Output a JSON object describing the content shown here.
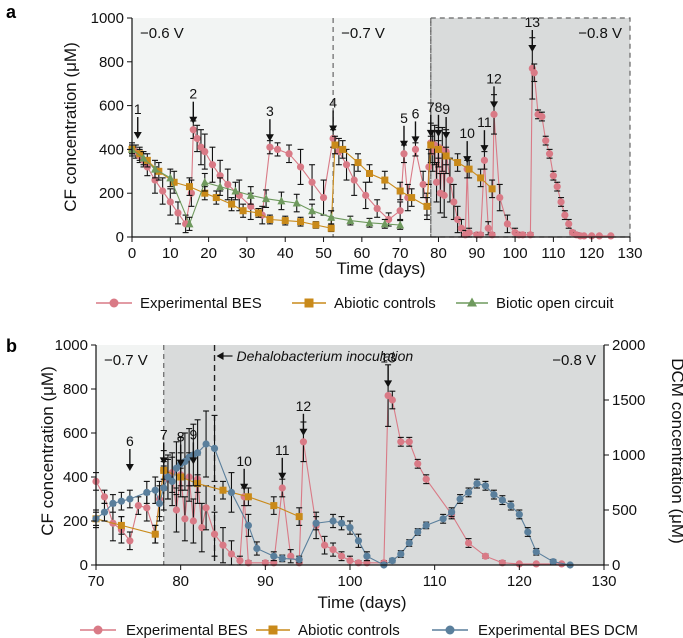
{
  "colors": {
    "experimental_bes": "#d97a86",
    "abiotic": "#c98a1a",
    "biotic": "#6f9a5e",
    "dcm": "#5a7f9c",
    "phase_light": "#f2f4f3",
    "phase_dark": "#d9dbdb"
  },
  "chart_data": [
    {
      "type": "line",
      "panel": "a",
      "xlabel": "Time (days)",
      "ylabel": "CF concentration (μM)",
      "xlim": [
        0,
        130
      ],
      "ylim": [
        0,
        1000
      ],
      "xticks": [
        0,
        10,
        20,
        30,
        40,
        50,
        60,
        70,
        80,
        90,
        100,
        110,
        120,
        130
      ],
      "yticks": [
        0,
        200,
        400,
        600,
        800,
        1000
      ],
      "phases": [
        {
          "label": "−0.6 V",
          "x0": 0,
          "x1": 52.5
        },
        {
          "label": "−0.7 V",
          "x0": 52.5,
          "x1": 78
        },
        {
          "label": "−0.8 V",
          "x0": 78,
          "x1": 130
        }
      ],
      "annotations": [
        {
          "label": "1",
          "x": 1.5,
          "y": 420
        },
        {
          "label": "2",
          "x": 16,
          "y": 490
        },
        {
          "label": "3",
          "x": 36,
          "y": 410
        },
        {
          "label": "4",
          "x": 52.5,
          "y": 450
        },
        {
          "label": "5",
          "x": 71,
          "y": 380
        },
        {
          "label": "6",
          "x": 74,
          "y": 400
        },
        {
          "label": "7",
          "x": 78,
          "y": 430
        },
        {
          "label": "8",
          "x": 80,
          "y": 430
        },
        {
          "label": "9",
          "x": 82,
          "y": 420
        },
        {
          "label": "10",
          "x": 87.5,
          "y": 310
        },
        {
          "label": "11",
          "x": 92,
          "y": 360
        },
        {
          "label": "12",
          "x": 94.5,
          "y": 560
        },
        {
          "label": "13",
          "x": 104.5,
          "y": 910
        }
      ],
      "series": [
        {
          "name": "Experimental BES",
          "marker": "circle",
          "x": [
            0,
            1,
            2,
            3,
            4,
            6,
            8,
            10,
            12,
            14,
            15.5,
            16,
            17,
            18,
            19,
            21,
            23,
            25,
            28,
            31,
            34,
            36,
            38,
            41,
            44,
            47,
            50,
            52.5,
            54,
            56,
            58,
            61,
            64,
            67,
            70,
            71,
            72,
            74,
            76,
            77,
            77.5,
            78,
            78.5,
            79,
            79.5,
            80,
            80.5,
            81,
            81.5,
            82,
            83,
            84,
            85,
            86,
            87,
            87.5,
            88,
            90,
            91,
            92,
            93,
            94,
            94.5,
            96,
            98,
            100,
            101,
            102,
            104,
            104.5,
            105,
            106,
            107,
            108,
            109,
            110,
            111,
            112,
            113,
            114,
            115,
            116,
            117,
            118,
            120,
            122,
            125
          ],
          "y": [
            400,
            390,
            370,
            350,
            320,
            260,
            210,
            160,
            110,
            60,
            200,
            490,
            450,
            410,
            390,
            330,
            280,
            240,
            190,
            140,
            100,
            410,
            400,
            380,
            320,
            250,
            180,
            450,
            390,
            330,
            260,
            190,
            130,
            80,
            120,
            380,
            180,
            400,
            240,
            140,
            320,
            430,
            390,
            420,
            250,
            410,
            200,
            400,
            190,
            390,
            260,
            160,
            80,
            40,
            10,
            310,
            20,
            10,
            10,
            350,
            40,
            10,
            560,
            180,
            60,
            20,
            10,
            10,
            10,
            770,
            750,
            560,
            550,
            440,
            380,
            280,
            230,
            160,
            100,
            60,
            20,
            10,
            5,
            5,
            5,
            5,
            5
          ],
          "err": [
            30,
            30,
            30,
            30,
            40,
            60,
            60,
            60,
            50,
            40,
            60,
            40,
            60,
            80,
            80,
            80,
            70,
            70,
            70,
            60,
            40,
            30,
            30,
            40,
            80,
            80,
            80,
            40,
            60,
            70,
            70,
            60,
            40,
            30,
            40,
            40,
            60,
            30,
            60,
            60,
            80,
            90,
            90,
            90,
            90,
            90,
            90,
            100,
            100,
            100,
            100,
            80,
            60,
            40,
            20,
            40,
            20,
            10,
            10,
            40,
            30,
            10,
            90,
            60,
            40,
            20,
            10,
            10,
            10,
            140,
            40,
            20,
            20,
            20,
            20,
            20,
            20,
            20,
            20,
            20,
            10,
            10,
            5,
            5,
            5,
            5,
            5
          ]
        },
        {
          "name": "Abiotic controls",
          "marker": "square",
          "x": [
            0,
            2,
            4,
            7,
            11,
            15,
            19,
            22,
            26,
            29,
            33,
            36,
            40,
            44,
            48,
            52,
            53,
            55,
            59,
            62,
            66,
            70,
            73,
            77,
            78,
            80,
            82,
            85,
            88,
            91,
            94
          ],
          "y": [
            400,
            380,
            350,
            300,
            250,
            230,
            200,
            180,
            150,
            120,
            110,
            80,
            75,
            70,
            55,
            40,
            420,
            400,
            340,
            290,
            260,
            210,
            180,
            140,
            420,
            400,
            370,
            340,
            310,
            270,
            220
          ],
          "err": [
            20,
            30,
            30,
            40,
            50,
            40,
            30,
            30,
            30,
            30,
            20,
            20,
            20,
            20,
            15,
            15,
            40,
            40,
            40,
            40,
            40,
            40,
            40,
            40,
            40,
            40,
            40,
            40,
            40,
            40,
            40
          ]
        },
        {
          "name": "Biotic open circuit",
          "marker": "triangle",
          "x": [
            0,
            3,
            6,
            10,
            15,
            19,
            23,
            27,
            31,
            35,
            39,
            43,
            47,
            52,
            57,
            62,
            66,
            70
          ],
          "y": [
            400,
            360,
            310,
            270,
            60,
            250,
            230,
            210,
            190,
            175,
            165,
            155,
            120,
            90,
            75,
            65,
            60,
            55
          ],
          "err": [
            20,
            30,
            40,
            40,
            30,
            40,
            40,
            40,
            40,
            40,
            40,
            40,
            30,
            30,
            20,
            20,
            20,
            20
          ]
        }
      ]
    },
    {
      "type": "line",
      "panel": "b",
      "xlabel": "Time (days)",
      "ylabel": "CF concentration (μM)",
      "y2label": "DCM concentration (μM)",
      "xlim": [
        70,
        130
      ],
      "ylim": [
        0,
        1000
      ],
      "y2lim": [
        0,
        2000
      ],
      "xticks": [
        70,
        80,
        90,
        100,
        110,
        120,
        130
      ],
      "yticks": [
        0,
        200,
        400,
        600,
        800,
        1000
      ],
      "y2ticks": [
        0,
        500,
        1000,
        1500,
        2000
      ],
      "phases": [
        {
          "label": "−0.7 V",
          "x0": 70,
          "x1": 78
        },
        {
          "label": "−0.8 V",
          "x0": 78,
          "x1": 130
        }
      ],
      "inoculation": {
        "label": "Dehalobacterium inoculation",
        "x": 84
      },
      "annotations": [
        {
          "label": "6",
          "x": 74,
          "y": 400
        },
        {
          "label": "7",
          "x": 78,
          "y": 430
        },
        {
          "label": "8",
          "x": 80,
          "y": 420
        },
        {
          "label": "9",
          "x": 81.5,
          "y": 430
        },
        {
          "label": "10",
          "x": 87.5,
          "y": 310
        },
        {
          "label": "11",
          "x": 92,
          "y": 360
        },
        {
          "label": "12",
          "x": 94.5,
          "y": 560
        },
        {
          "label": "13",
          "x": 104.5,
          "y": 780
        }
      ],
      "series": [
        {
          "name": "Experimental BES",
          "marker": "circle",
          "axis": "left",
          "x": [
            70,
            71,
            72,
            73,
            74,
            75,
            76,
            77,
            77.5,
            78,
            78.5,
            79,
            79.5,
            80,
            80.5,
            81,
            81.5,
            82,
            82.5,
            83,
            84,
            85,
            86,
            87,
            87.5,
            88,
            90,
            91,
            92,
            93,
            94,
            94.5,
            96,
            97,
            98,
            99,
            100,
            101,
            102,
            104,
            104.5,
            105,
            106,
            107,
            108,
            109,
            112,
            114,
            116,
            118,
            120,
            122,
            125
          ],
          "y": [
            380,
            310,
            190,
            160,
            110,
            270,
            260,
            140,
            300,
            430,
            390,
            420,
            250,
            410,
            210,
            400,
            200,
            390,
            170,
            260,
            140,
            90,
            50,
            20,
            310,
            10,
            10,
            10,
            350,
            40,
            10,
            560,
            180,
            90,
            70,
            40,
            20,
            10,
            10,
            10,
            770,
            750,
            560,
            560,
            460,
            390,
            230,
            100,
            40,
            10,
            5,
            5,
            5
          ],
          "err": [
            40,
            30,
            80,
            60,
            40,
            40,
            60,
            40,
            80,
            90,
            90,
            90,
            100,
            100,
            100,
            110,
            100,
            110,
            110,
            100,
            100,
            80,
            60,
            20,
            40,
            10,
            10,
            10,
            40,
            30,
            10,
            90,
            60,
            40,
            30,
            20,
            20,
            10,
            10,
            10,
            140,
            40,
            20,
            20,
            20,
            20,
            20,
            20,
            10,
            10,
            5,
            5,
            5
          ]
        },
        {
          "name": "Abiotic controls",
          "marker": "square",
          "axis": "left",
          "x": [
            70,
            73,
            77,
            78,
            80,
            82,
            85,
            88,
            91,
            94
          ],
          "y": [
            210,
            180,
            140,
            430,
            400,
            370,
            340,
            310,
            270,
            220
          ],
          "err": [
            40,
            40,
            40,
            40,
            40,
            40,
            40,
            40,
            40,
            40
          ]
        },
        {
          "name": "Experimental BES DCM",
          "marker": "circle",
          "axis": "right",
          "x": [
            70,
            71,
            72,
            73,
            74,
            76,
            77,
            77.5,
            78,
            78.5,
            79,
            79.5,
            80,
            80.5,
            81,
            81.5,
            82,
            83,
            84,
            86,
            88,
            89,
            91,
            92,
            94,
            96,
            98,
            99,
            100,
            101,
            102,
            104,
            105,
            106,
            107,
            108,
            109,
            111,
            112,
            113,
            114,
            115,
            116,
            117,
            118,
            119,
            120,
            121,
            122,
            124,
            126
          ],
          "y": [
            420,
            480,
            560,
            580,
            600,
            660,
            680,
            560,
            700,
            800,
            760,
            880,
            920,
            940,
            980,
            1000,
            1020,
            1100,
            1060,
            660,
            360,
            150,
            80,
            60,
            50,
            380,
            400,
            380,
            340,
            220,
            80,
            0,
            40,
            100,
            200,
            300,
            360,
            420,
            480,
            600,
            660,
            740,
            720,
            640,
            590,
            540,
            460,
            300,
            120,
            30,
            0
          ],
          "err": [
            60,
            80,
            80,
            80,
            80,
            100,
            120,
            160,
            200,
            200,
            220,
            240,
            240,
            260,
            260,
            280,
            300,
            300,
            300,
            180,
            100,
            60,
            40,
            30,
            30,
            60,
            60,
            60,
            60,
            60,
            40,
            20,
            20,
            30,
            30,
            30,
            30,
            40,
            40,
            40,
            40,
            40,
            40,
            40,
            40,
            40,
            40,
            40,
            30,
            20,
            10
          ]
        }
      ]
    }
  ],
  "legends": {
    "a": [
      "Experimental BES",
      "Abiotic controls",
      "Biotic open circuit"
    ],
    "b": [
      "Experimental BES",
      "Abiotic controls",
      "Experimental BES DCM"
    ]
  }
}
